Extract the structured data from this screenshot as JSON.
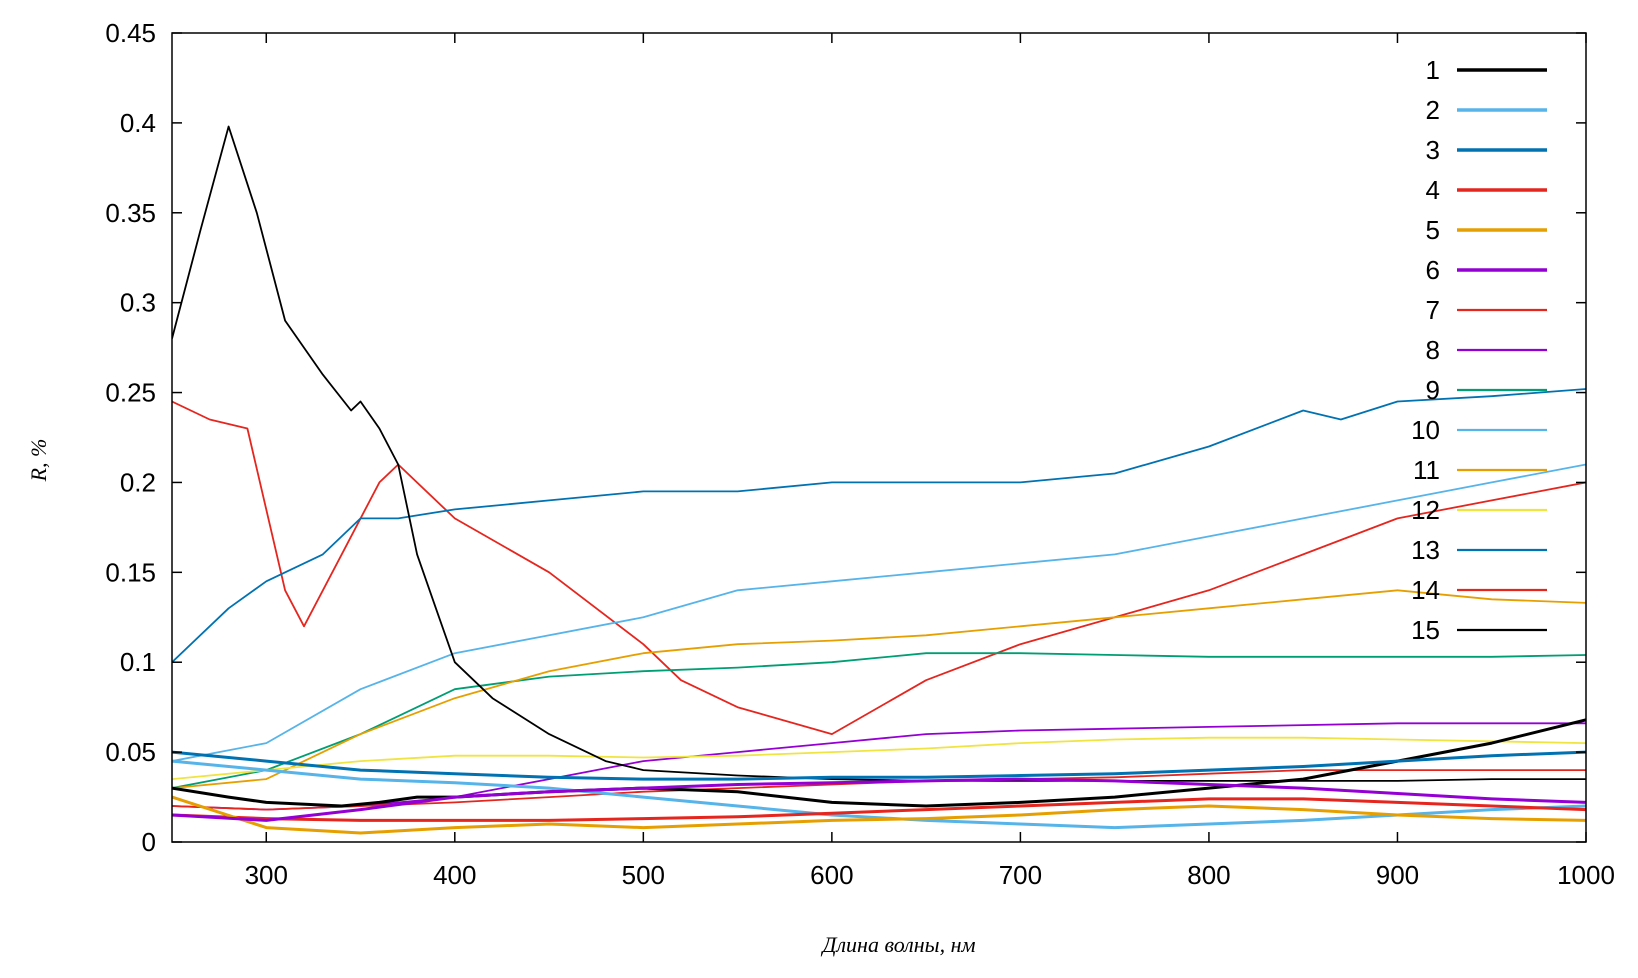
{
  "chart_data": {
    "type": "line",
    "title": "",
    "xlabel": "Длина волны, нм",
    "ylabel": "R, %",
    "xlim": [
      250,
      1000
    ],
    "ylim": [
      0,
      0.45
    ],
    "xticks": [
      300,
      400,
      500,
      600,
      700,
      800,
      900,
      1000
    ],
    "xtick_labels": [
      "300",
      "400",
      "500",
      "600",
      "700",
      "800",
      "900",
      "1000"
    ],
    "yticks": [
      0,
      0.05,
      0.1,
      0.15,
      0.2,
      0.25,
      0.3,
      0.35,
      0.4,
      0.45
    ],
    "ytick_labels": [
      "0",
      "0.05",
      "0.1",
      "0.15",
      "0.2",
      "0.25",
      "0.3",
      "0.35",
      "0.4",
      "0.45"
    ],
    "grid": false,
    "legend_position": "top-right",
    "series": [
      {
        "name": "1",
        "color": "#000000",
        "width": 3,
        "x": [
          250,
          280,
          300,
          340,
          360,
          380,
          400,
          450,
          500,
          550,
          600,
          650,
          700,
          750,
          800,
          850,
          900,
          950,
          1000
        ],
        "y": [
          0.03,
          0.025,
          0.022,
          0.02,
          0.022,
          0.025,
          0.025,
          0.028,
          0.03,
          0.028,
          0.022,
          0.02,
          0.022,
          0.025,
          0.03,
          0.035,
          0.045,
          0.055,
          0.068
        ]
      },
      {
        "name": "2",
        "color": "#56b4e9",
        "width": 3,
        "x": [
          250,
          300,
          350,
          400,
          450,
          500,
          550,
          600,
          650,
          700,
          750,
          800,
          850,
          900,
          950,
          1000
        ],
        "y": [
          0.045,
          0.04,
          0.035,
          0.033,
          0.03,
          0.025,
          0.02,
          0.015,
          0.012,
          0.01,
          0.008,
          0.01,
          0.012,
          0.015,
          0.018,
          0.02
        ]
      },
      {
        "name": "3",
        "color": "#0072b2",
        "width": 3,
        "x": [
          250,
          300,
          350,
          400,
          450,
          500,
          550,
          600,
          650,
          700,
          750,
          800,
          850,
          900,
          950,
          1000
        ],
        "y": [
          0.05,
          0.045,
          0.04,
          0.038,
          0.036,
          0.035,
          0.035,
          0.036,
          0.036,
          0.037,
          0.038,
          0.04,
          0.042,
          0.045,
          0.048,
          0.05
        ]
      },
      {
        "name": "4",
        "color": "#e5261f",
        "width": 3,
        "x": [
          250,
          300,
          350,
          400,
          450,
          500,
          550,
          600,
          650,
          700,
          750,
          800,
          850,
          900,
          950,
          1000
        ],
        "y": [
          0.015,
          0.013,
          0.012,
          0.012,
          0.012,
          0.013,
          0.014,
          0.016,
          0.018,
          0.02,
          0.022,
          0.024,
          0.024,
          0.022,
          0.02,
          0.018
        ]
      },
      {
        "name": "5",
        "color": "#e69f00",
        "width": 3,
        "x": [
          250,
          300,
          350,
          400,
          450,
          500,
          550,
          600,
          650,
          700,
          750,
          800,
          850,
          900,
          950,
          1000
        ],
        "y": [
          0.025,
          0.008,
          0.005,
          0.008,
          0.01,
          0.008,
          0.01,
          0.012,
          0.013,
          0.015,
          0.018,
          0.02,
          0.018,
          0.015,
          0.013,
          0.012
        ]
      },
      {
        "name": "6",
        "color": "#9400d3",
        "width": 3,
        "x": [
          250,
          300,
          350,
          400,
          450,
          500,
          550,
          600,
          650,
          700,
          750,
          800,
          850,
          900,
          950,
          1000
        ],
        "y": [
          0.015,
          0.012,
          0.018,
          0.025,
          0.028,
          0.03,
          0.032,
          0.033,
          0.034,
          0.035,
          0.034,
          0.032,
          0.03,
          0.027,
          0.024,
          0.022
        ]
      },
      {
        "name": "7",
        "color": "#e5261f",
        "width": 1.8,
        "x": [
          250,
          270,
          290,
          310,
          320,
          340,
          360,
          370,
          400,
          450,
          500,
          520,
          550,
          600,
          650,
          700,
          750,
          800,
          850,
          900,
          950,
          1000
        ],
        "y": [
          0.245,
          0.235,
          0.23,
          0.14,
          0.12,
          0.16,
          0.2,
          0.21,
          0.18,
          0.15,
          0.11,
          0.09,
          0.075,
          0.06,
          0.09,
          0.11,
          0.125,
          0.14,
          0.16,
          0.18,
          0.19,
          0.2
        ]
      },
      {
        "name": "8",
        "color": "#9400d3",
        "width": 1.8,
        "x": [
          250,
          300,
          350,
          400,
          450,
          500,
          550,
          600,
          650,
          700,
          750,
          800,
          850,
          900,
          950,
          1000
        ],
        "y": [
          0.02,
          0.018,
          0.02,
          0.025,
          0.035,
          0.045,
          0.05,
          0.055,
          0.06,
          0.062,
          0.063,
          0.064,
          0.065,
          0.066,
          0.066,
          0.066
        ]
      },
      {
        "name": "9",
        "color": "#009e73",
        "width": 1.8,
        "x": [
          250,
          300,
          350,
          400,
          450,
          500,
          550,
          600,
          650,
          700,
          750,
          800,
          850,
          900,
          950,
          1000
        ],
        "y": [
          0.03,
          0.04,
          0.06,
          0.085,
          0.092,
          0.095,
          0.097,
          0.1,
          0.105,
          0.105,
          0.104,
          0.103,
          0.103,
          0.103,
          0.103,
          0.104
        ]
      },
      {
        "name": "10",
        "color": "#56b4e9",
        "width": 1.8,
        "x": [
          250,
          300,
          350,
          400,
          450,
          500,
          550,
          600,
          650,
          700,
          750,
          800,
          850,
          900,
          950,
          1000
        ],
        "y": [
          0.045,
          0.055,
          0.085,
          0.105,
          0.115,
          0.125,
          0.14,
          0.145,
          0.15,
          0.155,
          0.16,
          0.17,
          0.18,
          0.19,
          0.2,
          0.21
        ]
      },
      {
        "name": "11",
        "color": "#e69f00",
        "width": 1.8,
        "x": [
          250,
          300,
          350,
          400,
          450,
          500,
          550,
          600,
          650,
          700,
          750,
          800,
          850,
          900,
          950,
          1000
        ],
        "y": [
          0.03,
          0.035,
          0.06,
          0.08,
          0.095,
          0.105,
          0.11,
          0.112,
          0.115,
          0.12,
          0.125,
          0.13,
          0.135,
          0.14,
          0.135,
          0.133
        ]
      },
      {
        "name": "12",
        "color": "#f0e442",
        "width": 1.8,
        "x": [
          250,
          300,
          350,
          400,
          450,
          500,
          550,
          600,
          650,
          700,
          750,
          800,
          850,
          900,
          950,
          1000
        ],
        "y": [
          0.035,
          0.04,
          0.045,
          0.048,
          0.048,
          0.047,
          0.048,
          0.05,
          0.052,
          0.055,
          0.057,
          0.058,
          0.058,
          0.057,
          0.056,
          0.055
        ]
      },
      {
        "name": "13",
        "color": "#0072b2",
        "width": 1.8,
        "x": [
          250,
          280,
          300,
          330,
          350,
          370,
          400,
          450,
          500,
          550,
          600,
          650,
          700,
          750,
          800,
          850,
          870,
          900,
          950,
          1000
        ],
        "y": [
          0.1,
          0.13,
          0.145,
          0.16,
          0.18,
          0.18,
          0.185,
          0.19,
          0.195,
          0.195,
          0.2,
          0.2,
          0.2,
          0.205,
          0.22,
          0.24,
          0.235,
          0.245,
          0.248,
          0.252
        ]
      },
      {
        "name": "14",
        "color": "#e5261f",
        "width": 1.8,
        "x": [
          250,
          300,
          350,
          400,
          450,
          500,
          550,
          600,
          650,
          700,
          750,
          800,
          850,
          900,
          950,
          1000
        ],
        "y": [
          0.02,
          0.018,
          0.02,
          0.022,
          0.025,
          0.028,
          0.03,
          0.032,
          0.034,
          0.035,
          0.036,
          0.038,
          0.04,
          0.04,
          0.04,
          0.04
        ]
      },
      {
        "name": "15",
        "color": "#000000",
        "width": 1.8,
        "x": [
          250,
          265,
          280,
          295,
          310,
          330,
          345,
          350,
          360,
          370,
          380,
          390,
          400,
          420,
          450,
          480,
          500,
          550,
          600,
          650,
          700,
          750,
          800,
          850,
          900,
          950,
          1000
        ],
        "y": [
          0.28,
          0.34,
          0.398,
          0.35,
          0.29,
          0.26,
          0.24,
          0.245,
          0.23,
          0.21,
          0.16,
          0.13,
          0.1,
          0.08,
          0.06,
          0.045,
          0.04,
          0.037,
          0.035,
          0.034,
          0.034,
          0.034,
          0.034,
          0.034,
          0.034,
          0.035,
          0.035
        ]
      }
    ]
  }
}
